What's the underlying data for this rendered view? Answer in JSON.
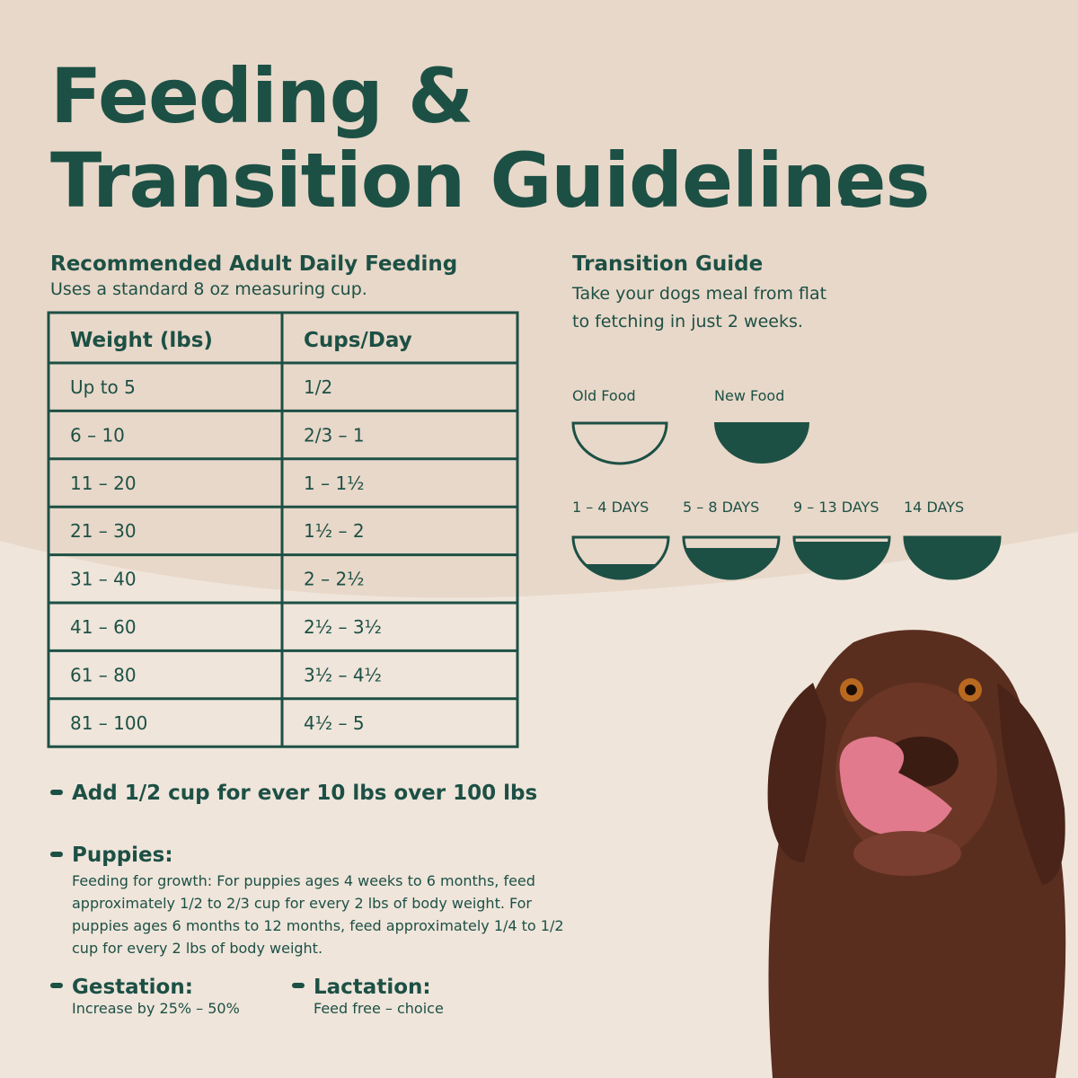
{
  "header": {
    "title_lines": [
      "Feeding &",
      "Transition Guidelines"
    ]
  },
  "feeding": {
    "heading": "Recommended Adult Daily Feeding",
    "subheading": "Uses a standard 8 oz measuring cup.",
    "table": {
      "columns": [
        "Weight (lbs)",
        "Cups/Day"
      ],
      "rows": [
        [
          "Up to 5",
          "1/2"
        ],
        [
          "6 – 10",
          "2/3 – 1"
        ],
        [
          "11 – 20",
          "1 – 1½"
        ],
        [
          "21 – 30",
          "1½ – 2"
        ],
        [
          "31 – 40",
          "2 – 2½"
        ],
        [
          "41 – 60",
          "2½ – 3½"
        ],
        [
          "61 – 80",
          "3½ – 4½"
        ],
        [
          "81 – 100",
          "4½ – 5"
        ]
      ]
    }
  },
  "notes": {
    "extra": "Add 1/2 cup for ever 10 lbs over 100 lbs",
    "puppies": {
      "heading": "Puppies:",
      "lines": [
        "Feeding for growth: For puppies ages 4 weeks to 6 months, feed",
        "approximately 1/2 to 2/3 cup for every 2 lbs of body weight. For",
        "puppies ages 6 months to 12 months, feed approximately 1/4 to 1/2",
        "cup for every 2 lbs of body weight."
      ]
    },
    "gestation": {
      "heading": "Gestation:",
      "text": "Increase by 25% – 50%"
    },
    "lactation": {
      "heading": "Lactation:",
      "text": "Feed free – choice"
    }
  },
  "transition": {
    "heading": "Transition Guide",
    "lines": [
      "Take your dogs meal from flat",
      "to fetching in just 2 weeks."
    ],
    "legend": [
      "Old Food",
      "New Food"
    ],
    "stages": [
      "1 – 4 DAYS",
      "5 – 8 DAYS",
      "9 – 13 DAYS",
      "14 DAYS"
    ]
  }
}
